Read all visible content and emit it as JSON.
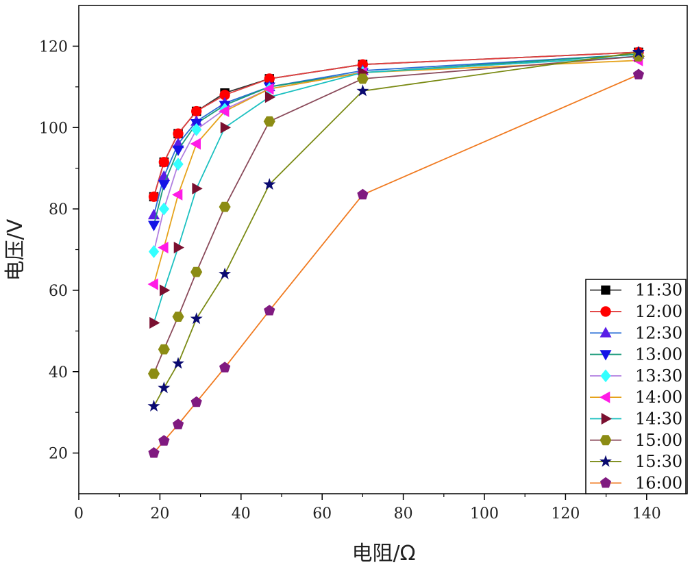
{
  "chart_data": {
    "type": "line",
    "title": "",
    "xlabel": "电阻/Ω",
    "ylabel": "电压/V",
    "xlim": [
      0,
      150
    ],
    "ylim": [
      10,
      130
    ],
    "xticks": [
      0,
      20,
      40,
      60,
      80,
      100,
      120,
      140
    ],
    "yticks": [
      20,
      40,
      60,
      80,
      100,
      120
    ],
    "grid": false,
    "legend_position": "bottom-right",
    "x": [
      18.5,
      21,
      24.5,
      29,
      36,
      47,
      70,
      138
    ],
    "series": [
      {
        "name": "11:30",
        "marker": "square",
        "marker_color": "#000000",
        "line_color": "#333333",
        "values": [
          83,
          91.5,
          98.5,
          104,
          108.5,
          112,
          115.5,
          118.5
        ]
      },
      {
        "name": "12:00",
        "marker": "circle",
        "marker_color": "#ff0000",
        "line_color": "#e04040",
        "values": [
          83,
          91.5,
          98.5,
          104,
          108,
          112,
          115.5,
          118.5
        ]
      },
      {
        "name": "12:30",
        "marker": "triangle-up",
        "marker_color": "#5a1ee6",
        "line_color": "#2a6fd6",
        "values": [
          78.5,
          88,
          96,
          101.5,
          106,
          110,
          114,
          118
        ]
      },
      {
        "name": "13:00",
        "marker": "triangle-down",
        "marker_color": "#1414e6",
        "line_color": "#1a9a7a",
        "values": [
          76,
          86,
          94.5,
          101,
          105.5,
          110,
          113.5,
          118
        ]
      },
      {
        "name": "13:30",
        "marker": "diamond",
        "marker_color": "#33ffff",
        "line_color": "#b07ee0",
        "values": [
          69.5,
          80,
          91,
          99.5,
          104.5,
          109.5,
          113.5,
          117.5
        ]
      },
      {
        "name": "14:00",
        "marker": "triangle-left",
        "marker_color": "#ff1ae6",
        "line_color": "#e6a21a",
        "values": [
          61.5,
          70.5,
          83.5,
          96,
          104,
          109.5,
          113.5,
          116.5
        ]
      },
      {
        "name": "14:30",
        "marker": "triangle-right",
        "marker_color": "#7a1030",
        "line_color": "#1ac0c0",
        "values": [
          52,
          60,
          70.5,
          85,
          100,
          107.5,
          113.5,
          117.5
        ]
      },
      {
        "name": "15:00",
        "marker": "hexagon",
        "marker_color": "#8c8c14",
        "line_color": "#8a4a5a",
        "values": [
          39.5,
          45.5,
          53.5,
          64.5,
          80.5,
          101.5,
          112,
          117.5
        ]
      },
      {
        "name": "15:30",
        "marker": "star",
        "marker_color": "#0a0a70",
        "line_color": "#7a8a14",
        "values": [
          31.5,
          36,
          42,
          53,
          64,
          86,
          109,
          118.5
        ]
      },
      {
        "name": "16:00",
        "marker": "pentagon",
        "marker_color": "#801a80",
        "line_color": "#f07a20",
        "values": [
          20,
          23,
          27,
          32.5,
          41,
          55,
          83.5,
          113
        ]
      }
    ]
  }
}
